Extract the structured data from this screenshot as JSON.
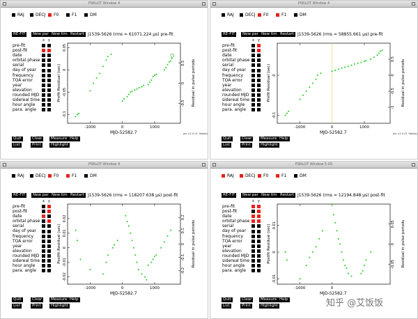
{
  "windows": [
    {
      "title": "PSRLOT Window 4",
      "params": [
        {
          "label": "RAJ",
          "on": false
        },
        {
          "label": "DECJ",
          "on": false
        },
        {
          "label": "F0",
          "on": true
        },
        {
          "label": "F1",
          "on": false
        },
        {
          "label": "DM",
          "on": false
        }
      ],
      "toolbar": [
        "RE-FIT",
        "New par",
        "New tim",
        "Restart"
      ],
      "header": "J1539-5626 (rms = 61071.224 μs) pre-fit",
      "xy_labels": [
        "x",
        "y"
      ],
      "options": [
        "pre-fit",
        "post-fit",
        "date",
        "orbital phase",
        "serial",
        "day of year",
        "frequency",
        "TOA error",
        "year",
        "elevation",
        "rounded MJD",
        "sidereal time",
        "hour angle",
        "para. angle"
      ],
      "ylabel": "Prefit Residual (sec)",
      "ylabel2": "Residual in pulse periods",
      "xlabel": "MJD-52582.7",
      "credit": "psr v.2.0 (G. Hobbs)",
      "bottom_buttons": [
        [
          "Quit",
          "Clear",
          "Measure",
          "Help"
        ],
        [
          "List",
          "Print",
          "Highlight"
        ]
      ],
      "chart_data": {
        "type": "scatter",
        "xlim": [
          -1700,
          1800
        ],
        "ylim": [
          -0.12,
          0.06
        ],
        "xticks": [
          -1000,
          0,
          1000
        ],
        "yticks": [
          0.05,
          0,
          -0.05,
          -0.1
        ],
        "y2ticks": [
          0.5,
          0,
          -0.5
        ],
        "points": [
          [
            -1450,
            -0.105
          ],
          [
            -1400,
            -0.1
          ],
          [
            -1350,
            -0.098
          ],
          [
            -1000,
            -0.047
          ],
          [
            -900,
            -0.03
          ],
          [
            -800,
            -0.018
          ],
          [
            -700,
            -0.008
          ],
          [
            -600,
            0.008
          ],
          [
            -500,
            0.022
          ],
          [
            -450,
            0.03
          ],
          [
            -350,
            0.035
          ],
          [
            0,
            -0.07
          ],
          [
            50,
            -0.065
          ],
          [
            150,
            -0.06
          ],
          [
            200,
            -0.055
          ],
          [
            250,
            -0.05
          ],
          [
            300,
            -0.048
          ],
          [
            380,
            -0.045
          ],
          [
            450,
            -0.043
          ],
          [
            520,
            -0.04
          ],
          [
            600,
            -0.038
          ],
          [
            650,
            -0.035
          ],
          [
            800,
            -0.033
          ],
          [
            850,
            -0.028
          ],
          [
            900,
            -0.023
          ],
          [
            950,
            -0.015
          ],
          [
            1000,
            -0.012
          ],
          [
            1050,
            -0.01
          ],
          [
            1300,
            0.0
          ],
          [
            1350,
            0.005
          ],
          [
            1400,
            0.012
          ],
          [
            1450,
            0.018
          ],
          [
            1500,
            0.02
          ],
          [
            1530,
            0.026
          ]
        ],
        "marked": [
          1550,
          0.032
        ]
      }
    },
    {
      "title": "PSRLOT Window 4",
      "params": [
        {
          "label": "RAJ",
          "on": false
        },
        {
          "label": "DECJ",
          "on": false
        },
        {
          "label": "F0",
          "on": true
        },
        {
          "label": "F1",
          "on": true
        },
        {
          "label": "DM",
          "on": false
        }
      ],
      "toolbar": [
        "RE-FIT",
        "New par",
        "New tim",
        "Restart"
      ],
      "header": "J1539-5626 (rms = 58855.661 μs) pre-fit",
      "xy_labels": [
        "x",
        "y"
      ],
      "options": [
        "pre-fit",
        "post-fit",
        "date",
        "orbital phase",
        "serial",
        "day of year",
        "frequency",
        "TOA error",
        "year",
        "elevation",
        "rounded MJD",
        "sidereal time",
        "hour angle",
        "para. angle"
      ],
      "ylabel": "Prefit Residual (sec)",
      "ylabel2": "Residual in pulse periods",
      "xlabel": "MJD-52582.7",
      "credit": "psr v.2.0 (G. Hobbs)",
      "bottom_buttons": [
        [
          "Quit",
          "Clear",
          "Measure",
          "Help"
        ],
        [
          "List",
          "Print",
          "Highlight"
        ]
      ],
      "chart_data": {
        "type": "scatter",
        "xlim": [
          -1700,
          1800
        ],
        "ylim": [
          -0.12,
          0.08
        ],
        "xticks": [
          -1000,
          0,
          1000
        ],
        "yticks": [
          0,
          -0.1
        ],
        "y2ticks": [
          0.5,
          0,
          -0.5,
          -1
        ],
        "vline": 0,
        "points": [
          [
            -1450,
            -0.1
          ],
          [
            -1400,
            -0.095
          ],
          [
            -1350,
            -0.09
          ],
          [
            -1000,
            -0.06
          ],
          [
            -900,
            -0.05
          ],
          [
            -800,
            -0.04
          ],
          [
            -700,
            -0.03
          ],
          [
            -600,
            -0.02
          ],
          [
            -500,
            -0.01
          ],
          [
            -450,
            0.0
          ],
          [
            -350,
            0.005
          ],
          [
            0,
            0.01
          ],
          [
            100,
            0.012
          ],
          [
            200,
            0.015
          ],
          [
            300,
            0.018
          ],
          [
            400,
            0.02
          ],
          [
            500,
            0.022
          ],
          [
            600,
            0.025
          ],
          [
            700,
            0.028
          ],
          [
            800,
            0.03
          ],
          [
            900,
            0.032
          ],
          [
            1000,
            0.035
          ],
          [
            1050,
            0.036
          ],
          [
            1200,
            0.04
          ],
          [
            1300,
            0.045
          ],
          [
            1400,
            0.05
          ],
          [
            1450,
            0.055
          ],
          [
            1500,
            0.06
          ],
          [
            1550,
            0.062
          ]
        ]
      }
    },
    {
      "title": "PSRLOT Window 4",
      "params": [
        {
          "label": "RAJ",
          "on": false
        },
        {
          "label": "DECJ",
          "on": false
        },
        {
          "label": "F0",
          "on": true
        },
        {
          "label": "F1",
          "on": true
        },
        {
          "label": "DM",
          "on": false
        }
      ],
      "toolbar": [
        "RE-FIT",
        "New par",
        "New tim",
        "Restart"
      ],
      "header": "J1539-5626 (rms = 118207.638 μs) post-fit",
      "xy_labels": [
        "x",
        "y"
      ],
      "options": [
        "pre-fit",
        "post-fit",
        "date",
        "orbital phase",
        "serial",
        "day of year",
        "frequency",
        "TOA error",
        "year",
        "elevation",
        "rounded MJD",
        "sidereal time",
        "hour angle",
        "para. angle"
      ],
      "ylabel": "Postfit Residual (sec)",
      "ylabel2": "Residual in pulse periods",
      "xlabel": "MJD-52582.7",
      "credit": "",
      "bottom_buttons": [
        [
          "Quit",
          "Clear",
          "Measure",
          "Help"
        ],
        [
          "List",
          "Print",
          "Highlight"
        ]
      ],
      "chart_data": {
        "type": "scatter",
        "xlim": [
          -1700,
          1800
        ],
        "ylim": [
          -0.025,
          0.03
        ],
        "xticks": [
          -1000,
          0,
          1000
        ],
        "yticks": [
          0.02,
          0.01,
          0,
          -0.01,
          -0.02
        ],
        "y2ticks": [
          0.2,
          0.1,
          0,
          -0.1,
          -0.2
        ],
        "points": [
          [
            -1450,
            0.012
          ],
          [
            -1400,
            0.005
          ],
          [
            -1300,
            -0.008
          ],
          [
            -1000,
            -0.015
          ],
          [
            -600,
            -0.018
          ],
          [
            -500,
            -0.01
          ],
          [
            -450,
            -0.005
          ],
          [
            -300,
            0.0
          ],
          [
            -250,
            0.002
          ],
          [
            -150,
            0.005
          ],
          [
            100,
            0.022
          ],
          [
            150,
            0.018
          ],
          [
            200,
            0.015
          ],
          [
            250,
            0.01
          ],
          [
            300,
            0.005
          ],
          [
            350,
            0.0
          ],
          [
            400,
            -0.005
          ],
          [
            450,
            -0.01
          ],
          [
            500,
            -0.015
          ],
          [
            600,
            -0.018
          ],
          [
            700,
            -0.02
          ],
          [
            750,
            -0.022
          ],
          [
            800,
            -0.012
          ],
          [
            900,
            -0.01
          ],
          [
            950,
            -0.008
          ],
          [
            1000,
            -0.006
          ],
          [
            1050,
            -0.005
          ],
          [
            1200,
            0.0
          ],
          [
            1300,
            0.004
          ],
          [
            1400,
            0.008
          ],
          [
            1500,
            0.012
          ]
        ]
      }
    },
    {
      "title": "PSRLOT Window 5.00",
      "params": [
        {
          "label": "RAJ",
          "on": true
        },
        {
          "label": "DECJ",
          "on": true
        },
        {
          "label": "F0",
          "on": true
        },
        {
          "label": "F1",
          "on": true
        },
        {
          "label": "DM",
          "on": false
        }
      ],
      "toolbar": [
        "RE-FIT",
        "New par",
        "New tim",
        "Restart"
      ],
      "header": "J1539-5626 (rms = 12194.848 μs) post-fit",
      "xy_labels": [
        "x",
        "y"
      ],
      "options": [
        "pre-fit",
        "post-fit",
        "date",
        "orbital phase",
        "serial",
        "day of year",
        "frequency",
        "TOA error",
        "year",
        "elevation",
        "rounded MJD",
        "sidereal time",
        "hour angle",
        "para. angle"
      ],
      "ylabel": "Postfit Residual (sec)",
      "ylabel2": "Residual in pulse periods",
      "xlabel": "MJD-52582.7",
      "credit": "",
      "bottom_buttons": [
        [
          "Quit",
          "Clear",
          "Measure",
          "Help"
        ],
        [
          "List",
          "Print",
          "Highlight"
        ]
      ],
      "chart_data": {
        "type": "scatter",
        "xlim": [
          -1700,
          1800
        ],
        "ylim": [
          -0.012,
          0.018
        ],
        "xticks": [
          -1000,
          0
        ],
        "yticks": [
          0.01,
          0,
          -0.01
        ],
        "y2ticks": [
          0.05,
          0,
          -0.05
        ],
        "points": [
          [
            -1450,
            0.0
          ],
          [
            -1400,
            -0.003
          ],
          [
            -1000,
            -0.01
          ],
          [
            -800,
            -0.005
          ],
          [
            -700,
            -0.002
          ],
          [
            -600,
            0.0
          ],
          [
            -500,
            0.002
          ],
          [
            -400,
            0.005
          ],
          [
            -300,
            0.008
          ],
          [
            0,
            0.018
          ],
          [
            50,
            0.014
          ],
          [
            100,
            0.011
          ],
          [
            150,
            0.008
          ],
          [
            200,
            0.005
          ],
          [
            250,
            0.003
          ],
          [
            300,
            0.0
          ],
          [
            350,
            -0.003
          ],
          [
            400,
            -0.005
          ],
          [
            450,
            -0.006
          ],
          [
            500,
            -0.008
          ],
          [
            600,
            -0.009
          ],
          [
            900,
            -0.008
          ],
          [
            950,
            -0.007
          ],
          [
            1000,
            -0.005
          ],
          [
            1050,
            -0.003
          ],
          [
            1200,
            0.0
          ]
        ]
      }
    }
  ],
  "watermark": "知乎 @艾饭饭"
}
